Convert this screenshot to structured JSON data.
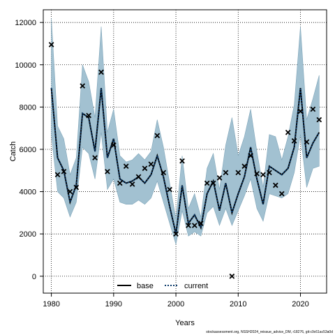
{
  "chart_data": {
    "type": "line",
    "title": "",
    "xlabel": "Years",
    "ylabel": "Catch",
    "xlim": [
      1978.7,
      2024.2
    ],
    "ylim": [
      -800,
      12600
    ],
    "x_ticks": [
      1980,
      1990,
      2000,
      2010,
      2020
    ],
    "y_ticks": [
      0,
      2000,
      4000,
      6000,
      8000,
      10000,
      12000
    ],
    "grid": true,
    "legend": {
      "placement": "bottom-center",
      "entries": [
        "base",
        "current"
      ]
    },
    "colors": {
      "band": "#a2c1d1",
      "band_edge": "#7fa5b9",
      "line": "#000000",
      "current_dash": "#0b3a6a"
    },
    "footer": "stockassessment.org, NSSH2024_reissue_advice_DM, r18276, git:c9c61ac53a0d",
    "series": [
      {
        "name": "current",
        "x": [
          1980,
          1981,
          1982,
          1983,
          1984,
          1985,
          1986,
          1987,
          1988,
          1989,
          1990,
          1991,
          1992,
          1993,
          1994,
          1995,
          1996,
          1997,
          1998,
          1999,
          2000,
          2001,
          2002,
          2003,
          2004,
          2005,
          2006,
          2007,
          2008,
          2009,
          2010,
          2011,
          2012,
          2013,
          2014,
          2015,
          2016,
          2017,
          2018,
          2019,
          2020,
          2021,
          2022,
          2023
        ],
        "y": [
          8900,
          5600,
          5000,
          3500,
          4300,
          7700,
          7500,
          5900,
          8900,
          5600,
          6500,
          4600,
          4400,
          4500,
          4700,
          4400,
          4800,
          5700,
          4700,
          3300,
          2000,
          4300,
          2500,
          2900,
          2300,
          3900,
          4500,
          3100,
          4400,
          3000,
          3900,
          4700,
          6100,
          4600,
          3400,
          5200,
          5000,
          4800,
          5100,
          6100,
          8900,
          5600,
          6300,
          6800
        ]
      },
      {
        "name": "confidence-upper",
        "x": [
          1980,
          1981,
          1982,
          1983,
          1984,
          1985,
          1986,
          1987,
          1988,
          1989,
          1990,
          1991,
          1992,
          1993,
          1994,
          1995,
          1996,
          1997,
          1998,
          1999,
          2000,
          2001,
          2002,
          2003,
          2004,
          2005,
          2006,
          2007,
          2008,
          2009,
          2010,
          2011,
          2012,
          2013,
          2014,
          2015,
          2016,
          2017,
          2018,
          2019,
          2020,
          2021,
          2022,
          2023
        ],
        "y": [
          12200,
          7100,
          6500,
          4800,
          5600,
          10000,
          9200,
          7500,
          11800,
          6800,
          7900,
          5700,
          5400,
          5500,
          5800,
          5500,
          5900,
          7400,
          6100,
          4400,
          2700,
          5700,
          3200,
          3900,
          2800,
          5100,
          5800,
          4100,
          6200,
          7500,
          5700,
          6600,
          7900,
          5900,
          4200,
          6700,
          6600,
          5500,
          6600,
          8100,
          11800,
          7400,
          8400,
          9500
        ]
      },
      {
        "name": "confidence-lower",
        "x": [
          1980,
          1981,
          1982,
          1983,
          1984,
          1985,
          1986,
          1987,
          1988,
          1989,
          1990,
          1991,
          1992,
          1993,
          1994,
          1995,
          1996,
          1997,
          1998,
          1999,
          2000,
          2001,
          2002,
          2003,
          2004,
          2005,
          2006,
          2007,
          2008,
          2009,
          2010,
          2011,
          2012,
          2013,
          2014,
          2015,
          2016,
          2017,
          2018,
          2019,
          2020,
          2021,
          2022,
          2023
        ],
        "y": [
          6700,
          4000,
          3700,
          2800,
          3500,
          6100,
          5800,
          4600,
          6800,
          4100,
          4600,
          3500,
          3400,
          3400,
          3600,
          3400,
          3700,
          4500,
          3500,
          2500,
          1500,
          3100,
          1900,
          2100,
          1900,
          3000,
          3300,
          2400,
          3200,
          2400,
          3100,
          3800,
          4600,
          3200,
          2600,
          3900,
          3800,
          3700,
          3900,
          4900,
          6700,
          4200,
          5100,
          5200
        ]
      },
      {
        "name": "observed",
        "x": [
          1980,
          1981,
          1982,
          1983,
          1984,
          1985,
          1986,
          1987,
          1988,
          1989,
          1990,
          1991,
          1992,
          1993,
          1994,
          1995,
          1996,
          1997,
          1998,
          1999,
          2000,
          2001,
          2002,
          2003,
          2004,
          2005,
          2006,
          2007,
          2008,
          2009,
          2010,
          2011,
          2012,
          2013,
          2014,
          2015,
          2016,
          2017,
          2018,
          2019,
          2020,
          2021,
          2022,
          2023
        ],
        "y": [
          10950,
          4800,
          4950,
          4000,
          4200,
          9000,
          7600,
          5600,
          9650,
          4950,
          6200,
          4400,
          5200,
          4350,
          4700,
          5100,
          5300,
          6650,
          4900,
          4100,
          2000,
          5450,
          2400,
          2400,
          2500,
          4400,
          4400,
          4650,
          4900,
          0,
          4900,
          5200,
          5700,
          4850,
          4800,
          4900,
          4300,
          3900,
          6800,
          6400,
          7800,
          6350,
          7900,
          7400
        ]
      }
    ]
  }
}
